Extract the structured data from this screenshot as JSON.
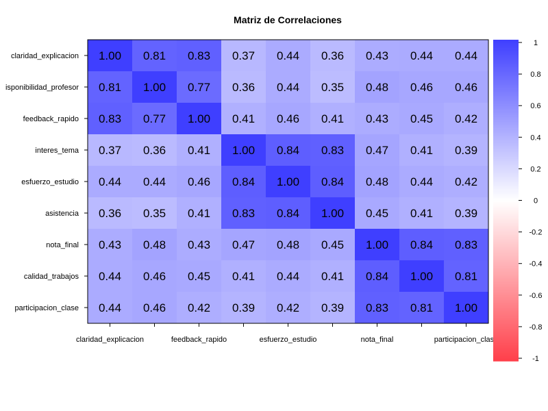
{
  "chart_data": {
    "type": "heatmap",
    "title": "Matriz de Correlaciones",
    "variables": [
      "claridad_explicacion",
      "disponibilidad_profesor",
      "feedback_rapido",
      "interes_tema",
      "esfuerzo_estudio",
      "asistencia",
      "nota_final",
      "calidad_trabajos",
      "participacion_clase"
    ],
    "row_labels": [
      "claridad_explicacion",
      "isponibilidad_profesor",
      "feedback_rapido",
      "interes_tema",
      "esfuerzo_estudio",
      "asistencia",
      "nota_final",
      "calidad_trabajos",
      "participacion_clase"
    ],
    "x_tick_labels": [
      "claridad_explicacion",
      "",
      "feedback_rapido",
      "",
      "esfuerzo_estudio",
      "",
      "nota_final",
      "",
      "participacion_clase"
    ],
    "matrix": [
      [
        1.0,
        0.81,
        0.83,
        0.37,
        0.44,
        0.36,
        0.43,
        0.44,
        0.44
      ],
      [
        0.81,
        1.0,
        0.77,
        0.36,
        0.44,
        0.35,
        0.48,
        0.46,
        0.46
      ],
      [
        0.83,
        0.77,
        1.0,
        0.41,
        0.46,
        0.41,
        0.43,
        0.45,
        0.42
      ],
      [
        0.37,
        0.36,
        0.41,
        1.0,
        0.84,
        0.83,
        0.47,
        0.41,
        0.39
      ],
      [
        0.44,
        0.44,
        0.46,
        0.84,
        1.0,
        0.84,
        0.48,
        0.44,
        0.42
      ],
      [
        0.36,
        0.35,
        0.41,
        0.83,
        0.84,
        1.0,
        0.45,
        0.41,
        0.39
      ],
      [
        0.43,
        0.48,
        0.43,
        0.47,
        0.48,
        0.45,
        1.0,
        0.84,
        0.83
      ],
      [
        0.44,
        0.46,
        0.45,
        0.41,
        0.44,
        0.41,
        0.84,
        1.0,
        0.81
      ],
      [
        0.44,
        0.46,
        0.42,
        0.39,
        0.42,
        0.39,
        0.83,
        0.81,
        1.0
      ]
    ],
    "value_range": [
      -1,
      1
    ],
    "colorbar": {
      "ticks": [
        1,
        0.8,
        0.6,
        0.4,
        0.2,
        0,
        -0.2,
        -0.4,
        -0.6,
        -0.8,
        -1
      ],
      "tick_labels": [
        "1",
        "0.8",
        "0.6",
        "0.4",
        "0.2",
        "0",
        "-0.2",
        "-0.4",
        "-0.6",
        "-0.8",
        "-1"
      ],
      "placement": "right"
    },
    "colors": {
      "high": "#3f3fff",
      "mid": "#ffffff",
      "low": "#ff3f4a"
    },
    "grid": false
  }
}
